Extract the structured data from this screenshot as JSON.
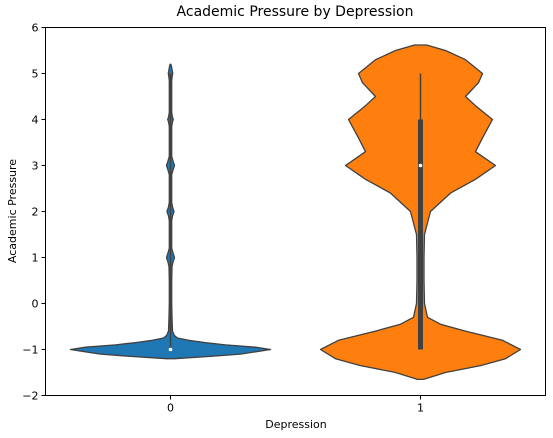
{
  "chart_data": {
    "type": "violin",
    "title": "Academic Pressure by Depression",
    "xlabel": "Depression",
    "ylabel": "Academic Pressure",
    "categories": [
      "0",
      "1"
    ],
    "ylim": [
      -2,
      6
    ],
    "yticks": [
      -2,
      -1,
      0,
      1,
      2,
      3,
      4,
      5,
      6
    ],
    "grid": false,
    "series": [
      {
        "category": "0",
        "color": "#1f77b4",
        "median": -1,
        "q1": -1,
        "q3": -1,
        "whisker_low": -1,
        "whisker_high": 5,
        "density_profile": [
          [
            -1.2,
            0.04
          ],
          [
            -1.15,
            0.4
          ],
          [
            -1.1,
            0.7
          ],
          [
            -1.05,
            0.85
          ],
          [
            -1.0,
            1.0
          ],
          [
            -0.95,
            0.85
          ],
          [
            -0.9,
            0.55
          ],
          [
            -0.85,
            0.35
          ],
          [
            -0.8,
            0.18
          ],
          [
            -0.75,
            0.07
          ],
          [
            -0.7,
            0.04
          ],
          [
            -0.6,
            0.02
          ],
          [
            -0.3,
            0.015
          ],
          [
            0.0,
            0.012
          ],
          [
            0.5,
            0.012
          ],
          [
            0.8,
            0.015
          ],
          [
            0.9,
            0.025
          ],
          [
            1.0,
            0.04
          ],
          [
            1.1,
            0.025
          ],
          [
            1.2,
            0.012
          ],
          [
            1.8,
            0.012
          ],
          [
            1.9,
            0.02
          ],
          [
            2.0,
            0.035
          ],
          [
            2.1,
            0.02
          ],
          [
            2.2,
            0.012
          ],
          [
            2.8,
            0.012
          ],
          [
            2.9,
            0.025
          ],
          [
            3.0,
            0.04
          ],
          [
            3.1,
            0.025
          ],
          [
            3.2,
            0.012
          ],
          [
            3.85,
            0.012
          ],
          [
            3.95,
            0.02
          ],
          [
            4.0,
            0.028
          ],
          [
            4.05,
            0.02
          ],
          [
            4.15,
            0.012
          ],
          [
            4.85,
            0.012
          ],
          [
            4.95,
            0.018
          ],
          [
            5.0,
            0.022
          ],
          [
            5.05,
            0.018
          ],
          [
            5.15,
            0.01
          ],
          [
            5.2,
            0.004
          ]
        ]
      },
      {
        "category": "1",
        "color": "#ff7f0e",
        "median": 3,
        "q1": -1,
        "q3": 4,
        "whisker_low": -1,
        "whisker_high": 5,
        "density_profile": [
          [
            -1.65,
            0.03
          ],
          [
            -1.5,
            0.25
          ],
          [
            -1.35,
            0.6
          ],
          [
            -1.2,
            0.85
          ],
          [
            -1.0,
            1.0
          ],
          [
            -0.8,
            0.82
          ],
          [
            -0.6,
            0.45
          ],
          [
            -0.45,
            0.2
          ],
          [
            -0.3,
            0.07
          ],
          [
            0.0,
            0.04
          ],
          [
            0.5,
            0.035
          ],
          [
            1.0,
            0.035
          ],
          [
            1.5,
            0.04
          ],
          [
            2.0,
            0.1
          ],
          [
            2.4,
            0.3
          ],
          [
            2.7,
            0.55
          ],
          [
            3.0,
            0.75
          ],
          [
            3.3,
            0.55
          ],
          [
            3.6,
            0.62
          ],
          [
            4.0,
            0.72
          ],
          [
            4.3,
            0.55
          ],
          [
            4.5,
            0.45
          ],
          [
            4.8,
            0.58
          ],
          [
            5.0,
            0.62
          ],
          [
            5.3,
            0.45
          ],
          [
            5.5,
            0.25
          ],
          [
            5.62,
            0.06
          ]
        ]
      }
    ]
  }
}
